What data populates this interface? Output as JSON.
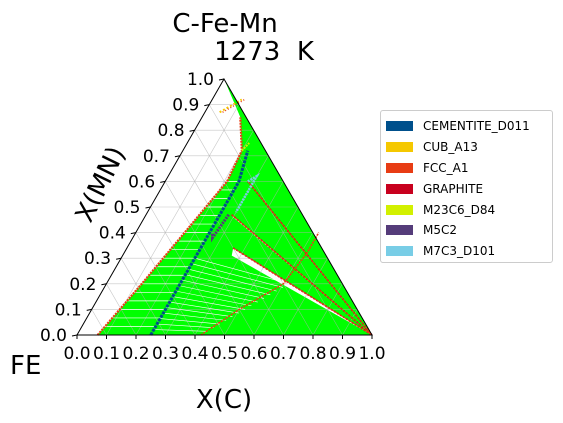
{
  "chart_data": {
    "type": "ternary",
    "title": "C-Fe-Mn",
    "subtitle": "1273  K",
    "xlabel": "X(C)",
    "ylabel": "X(MN)",
    "corner_label": "FE",
    "x_ticks": [
      "0.0",
      "0.1",
      "0.2",
      "0.3",
      "0.4",
      "0.5",
      "0.6",
      "0.7",
      "0.8",
      "0.9",
      "1.0"
    ],
    "y_ticks": [
      "0.0",
      "0.1",
      "0.2",
      "0.3",
      "0.4",
      "0.5",
      "0.6",
      "0.7",
      "0.8",
      "0.9",
      "1.0"
    ],
    "xlim": [
      0,
      1
    ],
    "ylim": [
      0,
      1
    ],
    "grid": true,
    "legend_placement": "right",
    "legend": [
      {
        "label": "CEMENTITE_D011",
        "color": "#00508c"
      },
      {
        "label": "CUB_A13",
        "color": "#f5c800"
      },
      {
        "label": "FCC_A1",
        "color": "#e83c14"
      },
      {
        "label": "GRAPHITE",
        "color": "#c8001e"
      },
      {
        "label": "M23C6_D84",
        "color": "#d2f000"
      },
      {
        "label": "M5C2",
        "color": "#553c7a"
      },
      {
        "label": "M7C3_D101",
        "color": "#78cde6"
      }
    ],
    "region_color": "#00ff00",
    "phase_boundaries": {
      "fcc_left": [
        [
          0.07,
          0.0
        ],
        [
          0.12,
          0.2
        ],
        [
          0.17,
          0.42
        ],
        [
          0.21,
          0.6
        ],
        [
          0.2,
          0.72
        ],
        [
          0.13,
          0.85
        ]
      ],
      "fcc_right": [
        [
          0.42,
          0.0
        ],
        [
          0.5,
          0.1
        ],
        [
          0.6,
          0.2
        ],
        [
          0.62,
          0.32
        ],
        [
          0.62,
          0.4
        ]
      ],
      "cementite": [
        [
          0.25,
          0.0
        ],
        [
          0.25,
          0.2
        ],
        [
          0.25,
          0.4
        ],
        [
          0.25,
          0.6
        ],
        [
          0.22,
          0.72
        ]
      ],
      "cub_a13": [
        [
          0.05,
          0.87
        ],
        [
          0.1,
          0.92
        ]
      ],
      "m23c6": [
        [
          0.2,
          0.72
        ],
        [
          0.21,
          0.75
        ]
      ],
      "m7c3": [
        [
          0.28,
          0.6
        ],
        [
          0.3,
          0.62
        ],
        [
          0.3,
          0.48
        ]
      ],
      "m5c2": [
        [
          0.28,
          0.47
        ],
        [
          0.27,
          0.38
        ],
        [
          0.26,
          0.4
        ]
      ],
      "graphite_tie_lines": [
        [
          [
            0.36,
            0.34
          ],
          [
            1.0,
            0.0
          ]
        ],
        [
          [
            0.29,
            0.47
          ],
          [
            1.0,
            0.0
          ]
        ],
        [
          [
            0.28,
            0.6
          ],
          [
            1.0,
            0.0
          ]
        ]
      ]
    }
  }
}
